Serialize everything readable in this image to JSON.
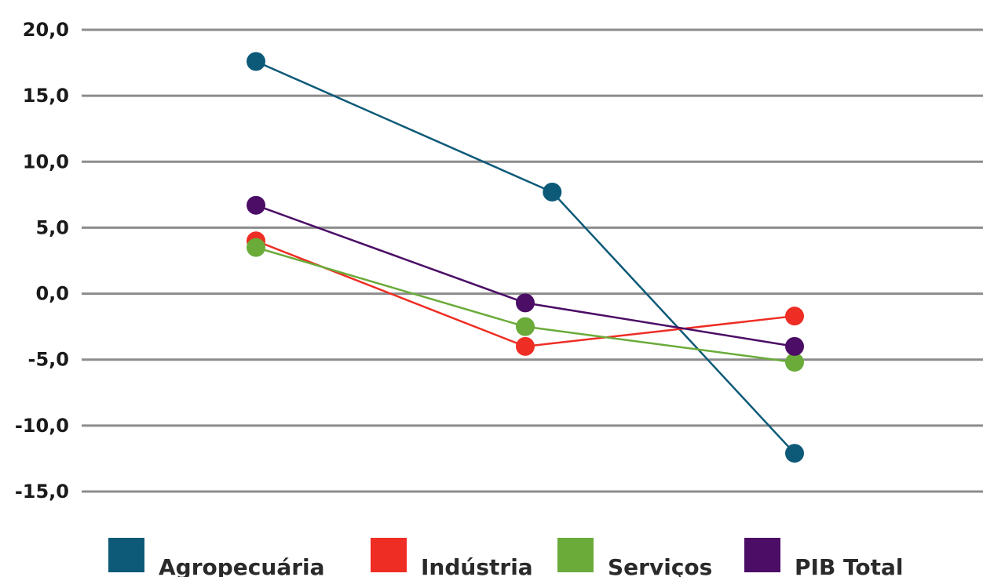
{
  "chart_data": {
    "type": "line",
    "x": [
      "",
      "",
      ""
    ],
    "ylim": [
      -15,
      20
    ],
    "yticks": [
      20,
      15,
      10,
      5,
      0,
      -5,
      -10,
      -15
    ],
    "ytick_labels": [
      "20,0",
      "15,0",
      "10,0",
      "5,0",
      "0,0",
      "-5,0",
      "-10,0",
      "-15,0"
    ],
    "grid": true,
    "legend_position": "bottom",
    "series": [
      {
        "name": "Agropecuária",
        "color": "#0d5a78",
        "values": [
          17.6,
          7.7,
          -12.1
        ],
        "xpos": [
          0,
          1.1,
          2
        ]
      },
      {
        "name": "Indústria",
        "color": "#ee2d24",
        "values": [
          4.0,
          -4.0,
          -1.7
        ],
        "xpos": [
          0,
          1,
          2
        ]
      },
      {
        "name": "Serviços",
        "color": "#6aab3a",
        "values": [
          3.5,
          -2.5,
          -5.2
        ],
        "xpos": [
          0,
          1,
          2
        ]
      },
      {
        "name": "PIB Total",
        "color": "#4b0d66",
        "values": [
          6.7,
          -0.7,
          -4.0
        ],
        "xpos": [
          0,
          1,
          2
        ]
      }
    ]
  }
}
